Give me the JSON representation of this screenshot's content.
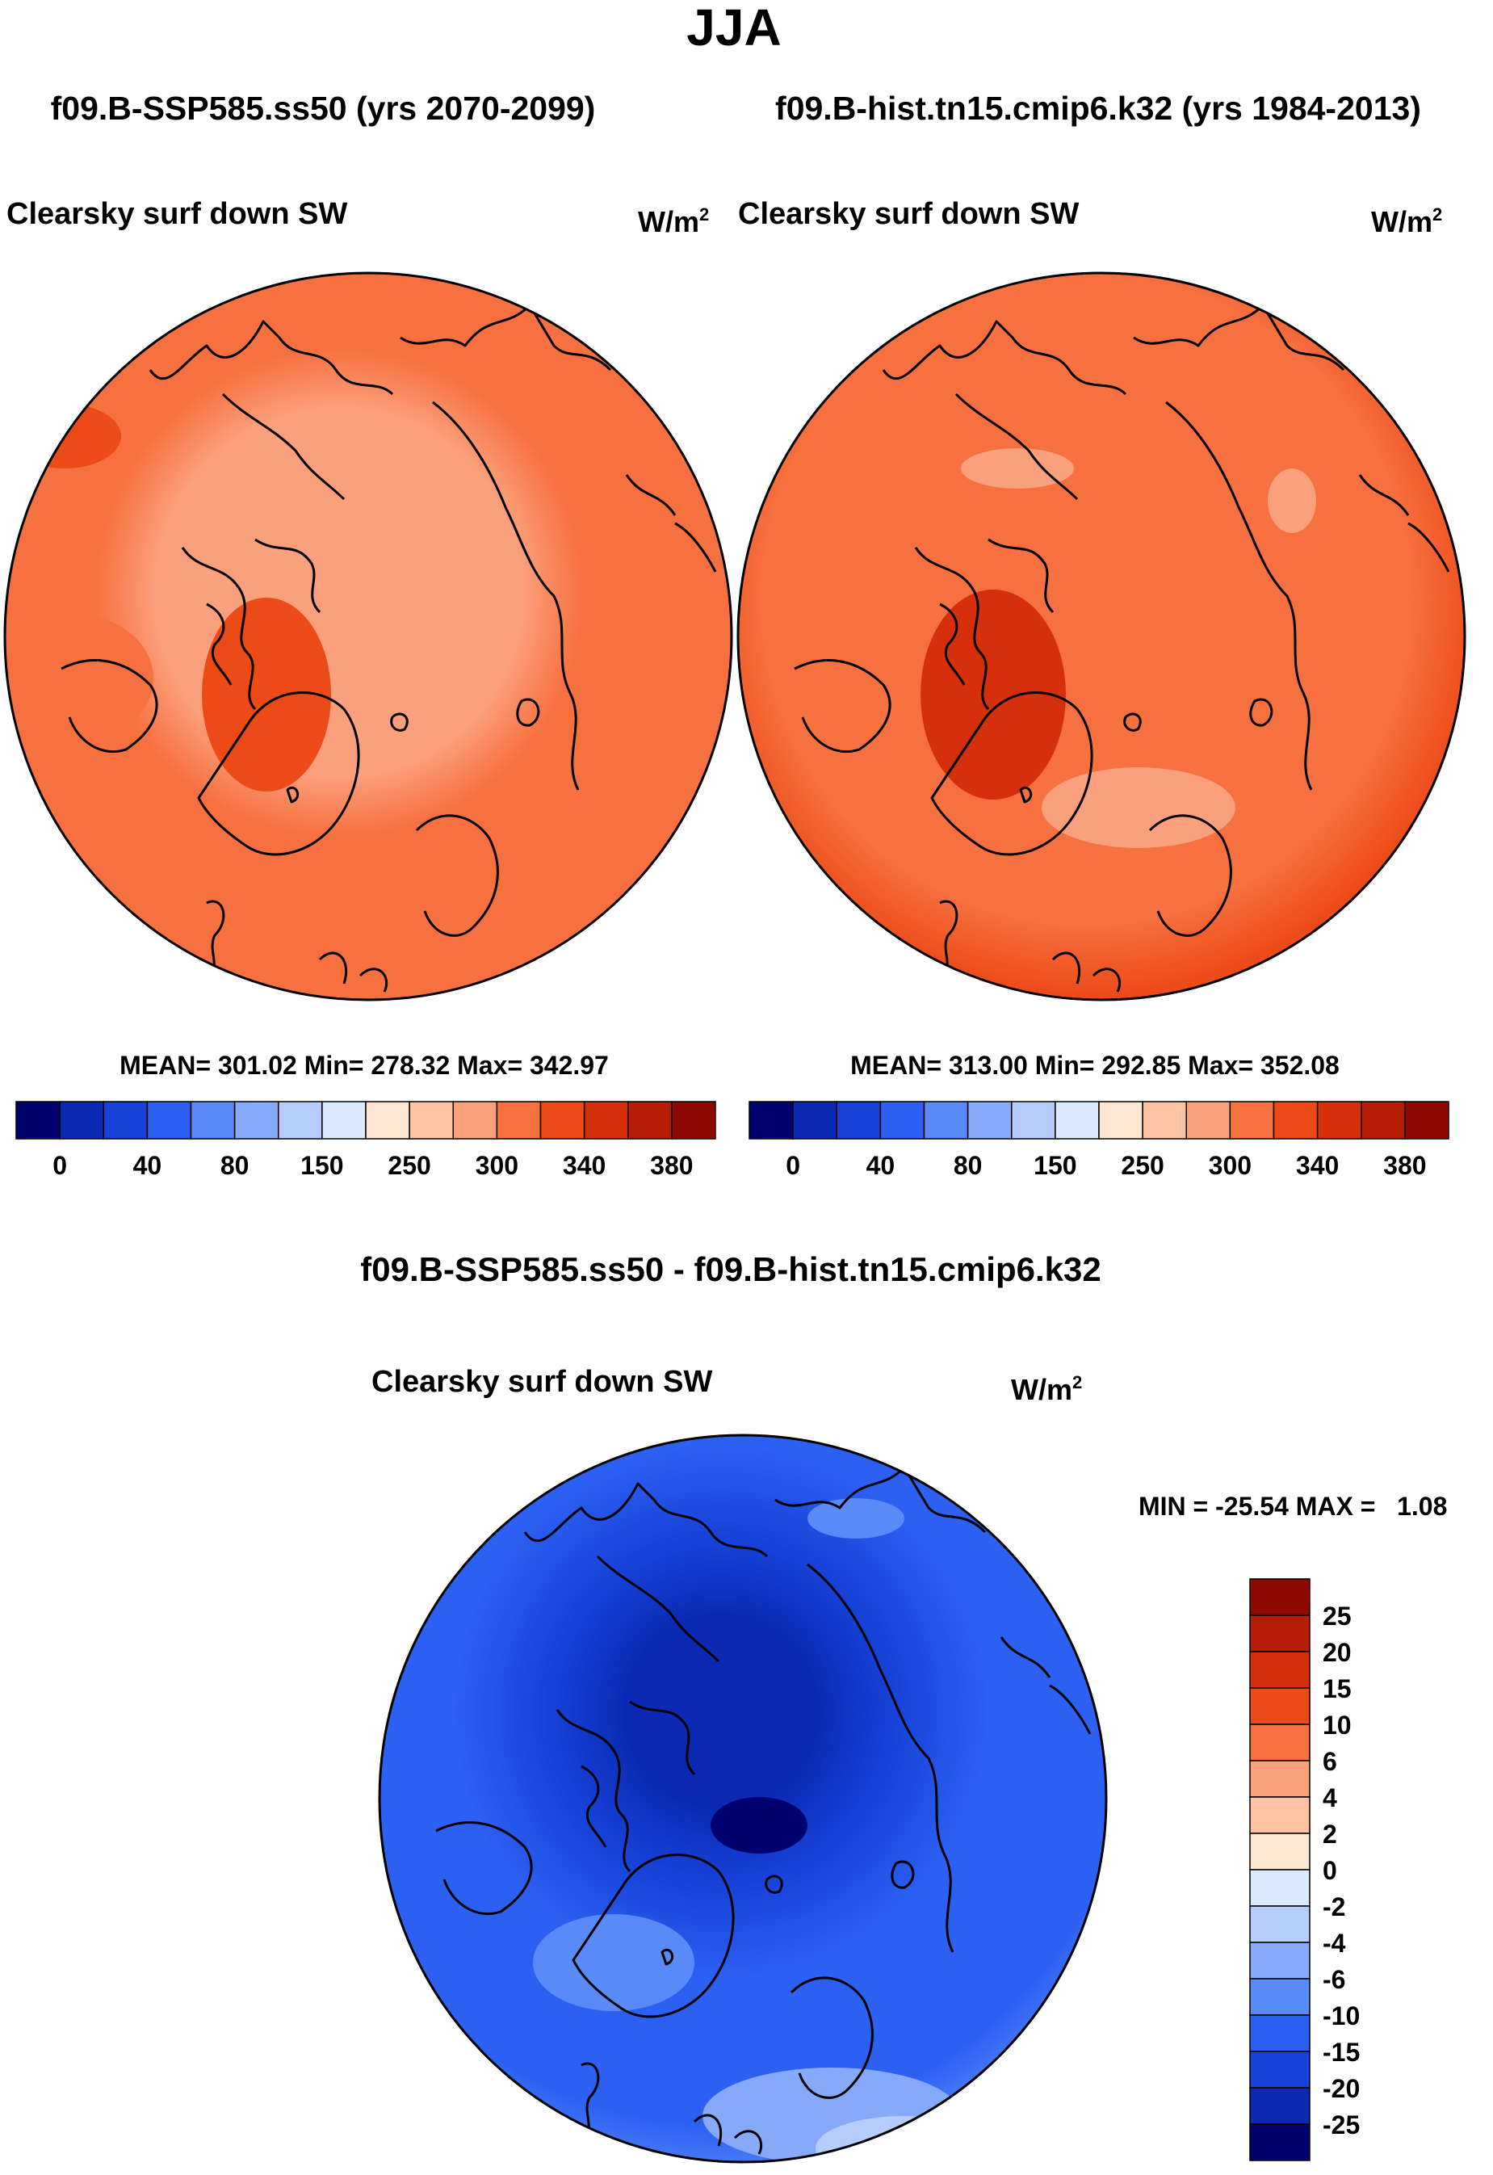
{
  "season": "JJA",
  "header_subtitle": {
    "case1": "f09.B-SSP585.ss50 (yrs 2070-2099)",
    "case2": "f09.B-hist.tn15.cmip6.k32 (yrs 1984-2013)"
  },
  "colors": {
    "abs_scale": [
      "#00006e",
      "#0a2ab4",
      "#1742d9",
      "#2c60f2",
      "#5a8af7",
      "#86a9fa",
      "#b6cdfc",
      "#dde9fd",
      "#fde6d2",
      "#fcc4a3",
      "#fba07c",
      "#f7703f",
      "#ec4a17",
      "#d62f0c",
      "#b51d06",
      "#8e0a00"
    ],
    "diff_scale": [
      "#8e0a00",
      "#b51d06",
      "#d62f0c",
      "#ec4a17",
      "#f7703f",
      "#fba07c",
      "#fcc4a3",
      "#fde6d2",
      "#dde9fd",
      "#b6cdfc",
      "#86a9fa",
      "#5a8af7",
      "#2c60f2",
      "#1742d9",
      "#0a2ab4",
      "#00006e"
    ],
    "coast": "#000000"
  },
  "chart_data": [
    {
      "type": "heatmap",
      "panel": "left",
      "projection": "north-polar-stereographic",
      "title": "Clearsky surf down SW",
      "units": "W/m",
      "units_sup": "2",
      "stats": "MEAN= 301.02  Min= 278.32  Max= 342.97",
      "mean": 301.02,
      "min": 278.32,
      "max": 342.97,
      "colorbar_ticks": [
        "0",
        "40",
        "80",
        "150",
        "250",
        "300",
        "340",
        "380"
      ],
      "levels": [
        0,
        20,
        40,
        60,
        80,
        100,
        150,
        200,
        250,
        275,
        300,
        320,
        340,
        360,
        380
      ],
      "dominant_fields": [
        {
          "region": "central Arctic and Eurasian high latitudes",
          "value_range": [
            275,
            300
          ]
        },
        {
          "region": "mid latitudes and Canada",
          "value_range": [
            300,
            320
          ]
        },
        {
          "region": "Greenland ice sheet",
          "value_range": [
            320,
            340
          ]
        }
      ]
    },
    {
      "type": "heatmap",
      "panel": "right",
      "projection": "north-polar-stereographic",
      "title": "Clearsky surf down SW",
      "units": "W/m",
      "units_sup": "2",
      "stats": "MEAN= 313.00  Min= 292.85  Max= 352.08",
      "mean": 313.0,
      "min": 292.85,
      "max": 352.08,
      "colorbar_ticks": [
        "0",
        "40",
        "80",
        "150",
        "250",
        "300",
        "340",
        "380"
      ],
      "levels": [
        0,
        20,
        40,
        60,
        80,
        100,
        150,
        200,
        250,
        275,
        300,
        320,
        340,
        360,
        380
      ],
      "dominant_fields": [
        {
          "region": "Barents / Scandinavian sector",
          "value_range": [
            275,
            300
          ]
        },
        {
          "region": "Arctic Ocean and Canada",
          "value_range": [
            300,
            320
          ]
        },
        {
          "region": "Greenland and outer ring",
          "value_range": [
            320,
            340
          ]
        }
      ]
    },
    {
      "type": "heatmap",
      "panel": "difference",
      "projection": "north-polar-stereographic",
      "title": "f09.B-SSP585.ss50 - f09.B-hist.tn15.cmip6.k32",
      "field": "Clearsky surf down SW",
      "units": "W/m",
      "units_sup": "2",
      "stats": "MIN = -25.54 MAX =   1.08",
      "min": -25.54,
      "max": 1.08,
      "colorbar_ticks": [
        "25",
        "20",
        "15",
        "10",
        "6",
        "4",
        "2",
        "0",
        "-2",
        "-4",
        "-6",
        "-10",
        "-15",
        "-20",
        "-25"
      ],
      "levels": [
        25,
        20,
        15,
        10,
        6,
        4,
        2,
        0,
        -2,
        -4,
        -6,
        -10,
        -15,
        -20,
        -25
      ],
      "dominant_fields": [
        {
          "region": "central Arctic",
          "value_range": [
            -25,
            -20
          ]
        },
        {
          "region": "Arctic margins",
          "value_range": [
            -20,
            -10
          ]
        },
        {
          "region": "mid latitudes",
          "value_range": [
            -10,
            -4
          ]
        },
        {
          "region": "Europe south edge",
          "value_range": [
            -4,
            0
          ]
        }
      ]
    }
  ]
}
